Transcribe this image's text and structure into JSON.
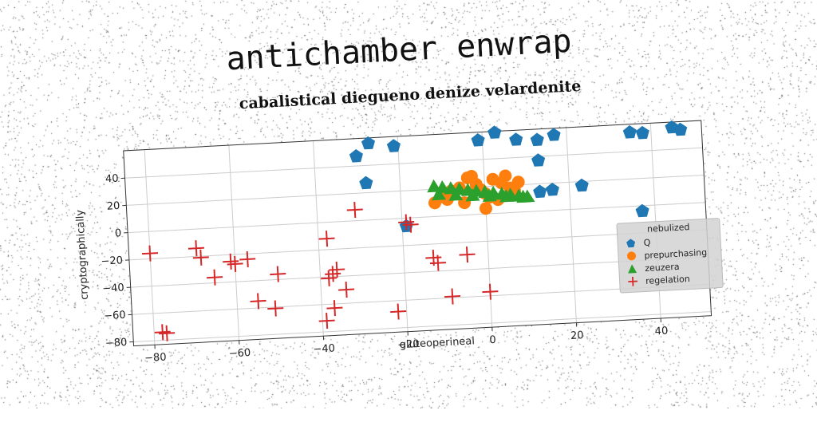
{
  "header": {
    "title": "antichamber enwrap"
  },
  "chart_data": {
    "type": "scatter",
    "title": "cabalistical diegueno denize velardenite",
    "xlabel": "gluteoperineal",
    "ylabel": "cryptographically",
    "xlim": [
      -85,
      52
    ],
    "ylim": [
      -83,
      60
    ],
    "xticks": [
      -80,
      -60,
      -40,
      -20,
      0,
      20,
      40
    ],
    "yticks": [
      -80,
      -60,
      -40,
      -20,
      0,
      20,
      40
    ],
    "xtick_labels": [
      "−80",
      "−60",
      "−40",
      "−20",
      "0",
      "20",
      "40"
    ],
    "ytick_labels": [
      "−80",
      "−60",
      "−40",
      "−20",
      "0",
      "20",
      "40"
    ],
    "grid": true,
    "legend": {
      "title": "nebulized",
      "placement": "lower-right"
    },
    "series": [
      {
        "name": "Q",
        "marker": "pentagon",
        "color": "#1f77b4",
        "x": [
          -30,
          -27,
          -21,
          -28,
          -19,
          -1,
          3,
          8,
          13,
          17,
          13,
          13,
          16,
          23,
          35,
          38,
          45,
          47,
          37
        ],
        "y": [
          47,
          56,
          53,
          27,
          -6,
          54,
          59,
          53,
          52,
          55,
          37,
          14,
          15,
          17,
          54,
          53,
          56,
          54,
          -4
        ]
      },
      {
        "name": "prepurchasing",
        "marker": "circle",
        "color": "#ff7f0e",
        "x": [
          -12,
          -10,
          -8,
          -6,
          -4,
          -3,
          -2,
          -1,
          0,
          1,
          2,
          4,
          6,
          8,
          5,
          -5,
          -9,
          0,
          3,
          7
        ],
        "y": [
          10,
          14,
          18,
          20,
          27,
          28,
          22,
          18,
          15,
          12,
          25,
          22,
          18,
          22,
          27,
          9,
          12,
          4,
          10,
          16
        ]
      },
      {
        "name": "zeuzera",
        "marker": "triangle",
        "color": "#2ca02c",
        "x": [
          -12,
          -10,
          -8,
          -6,
          -4,
          -2,
          0,
          2,
          4,
          6,
          8,
          10,
          -11,
          -7,
          -3,
          1,
          5,
          9
        ],
        "y": [
          22,
          21,
          20,
          19,
          18,
          17,
          16,
          15,
          14,
          13,
          12,
          11,
          16,
          15,
          14,
          13,
          12,
          11
        ]
      },
      {
        "name": "regelation",
        "marker": "plus",
        "color": "#d62728",
        "x": [
          -80,
          -78,
          -77,
          -69,
          -68,
          -65,
          -61,
          -60,
          -57,
          -55,
          -51,
          -50,
          -38,
          -38,
          -37,
          -36,
          -34,
          -31,
          -37,
          -39,
          -22,
          -19,
          -18,
          -13,
          -12,
          -5,
          -9,
          0
        ],
        "y": [
          -16,
          -74,
          -75,
          -14,
          -21,
          -36,
          -25,
          -27,
          -24,
          -55,
          -61,
          -36,
          -12,
          -41,
          -38,
          -35,
          -50,
          8,
          -63,
          -72,
          -68,
          -3,
          -5,
          -30,
          -34,
          -29,
          -59,
          -57
        ]
      }
    ]
  }
}
